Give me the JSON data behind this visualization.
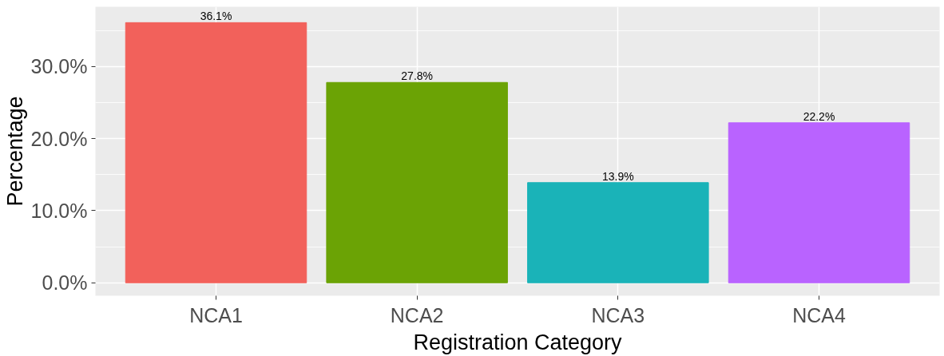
{
  "chart_data": {
    "type": "bar",
    "xlabel": "Registration Category",
    "ylabel": "Percentage",
    "categories": [
      "NCA1",
      "NCA2",
      "NCA3",
      "NCA4"
    ],
    "values": [
      36.1,
      27.8,
      13.9,
      22.2
    ],
    "colors": [
      "#f2615b",
      "#6ba305",
      "#1ab3b8",
      "#b963ff"
    ],
    "value_labels": [
      "36.1%",
      "27.8%",
      "13.9%",
      "22.2%"
    ],
    "ylim": [
      -1.8,
      38.3
    ],
    "yticks": [
      {
        "value": 0,
        "label": "0.0%"
      },
      {
        "value": 10,
        "label": "10.0%"
      },
      {
        "value": 20,
        "label": "20.0%"
      },
      {
        "value": 30,
        "label": "30.0%"
      }
    ],
    "grid": true
  }
}
